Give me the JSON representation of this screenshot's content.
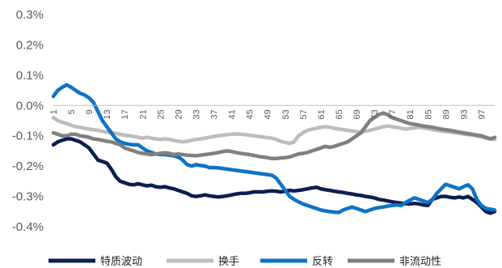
{
  "chart_data": {
    "type": "line",
    "x": [
      1,
      2,
      3,
      4,
      5,
      6,
      7,
      8,
      9,
      10,
      11,
      12,
      13,
      14,
      15,
      16,
      17,
      18,
      19,
      20,
      21,
      22,
      23,
      24,
      25,
      26,
      27,
      28,
      29,
      30,
      31,
      32,
      33,
      34,
      35,
      36,
      37,
      38,
      39,
      40,
      41,
      42,
      43,
      44,
      45,
      46,
      47,
      48,
      49,
      50,
      51,
      52,
      53,
      54,
      55,
      56,
      57,
      58,
      59,
      60,
      61,
      62,
      63,
      64,
      65,
      66,
      67,
      68,
      69,
      70,
      71,
      72,
      73,
      74,
      75,
      76,
      77,
      78,
      79,
      80,
      81,
      82,
      83,
      84,
      85,
      86,
      87,
      88,
      89,
      90,
      91,
      92,
      93,
      94,
      95,
      96,
      97,
      98,
      99,
      100
    ],
    "xtick_labels": [
      "1",
      "5",
      "9",
      "13",
      "17",
      "21",
      "25",
      "29",
      "33",
      "37",
      "41",
      "45",
      "49",
      "53",
      "57",
      "61",
      "65",
      "69",
      "73",
      "77",
      "81",
      "85",
      "89",
      "93",
      "97"
    ],
    "ytick_labels": [
      "0.3%",
      "0.2%",
      "0.1%",
      "0.0%",
      "-0.1%",
      "-0.2%",
      "-0.3%",
      "-0.4%"
    ],
    "ylim": [
      -0.4,
      0.3
    ],
    "legend_position": "bottom",
    "series": [
      {
        "name": "特质波动",
        "color": "#0b1f4f",
        "values": [
          -0.13,
          -0.12,
          -0.115,
          -0.11,
          -0.11,
          -0.115,
          -0.12,
          -0.13,
          -0.14,
          -0.16,
          -0.18,
          -0.185,
          -0.19,
          -0.21,
          -0.235,
          -0.25,
          -0.255,
          -0.26,
          -0.262,
          -0.258,
          -0.262,
          -0.265,
          -0.263,
          -0.268,
          -0.27,
          -0.268,
          -0.272,
          -0.275,
          -0.28,
          -0.285,
          -0.29,
          -0.298,
          -0.3,
          -0.298,
          -0.295,
          -0.298,
          -0.3,
          -0.302,
          -0.3,
          -0.298,
          -0.295,
          -0.292,
          -0.29,
          -0.29,
          -0.288,
          -0.285,
          -0.285,
          -0.285,
          -0.283,
          -0.282,
          -0.283,
          -0.285,
          -0.283,
          -0.28,
          -0.282,
          -0.28,
          -0.278,
          -0.275,
          -0.272,
          -0.27,
          -0.275,
          -0.278,
          -0.28,
          -0.283,
          -0.285,
          -0.287,
          -0.29,
          -0.292,
          -0.295,
          -0.297,
          -0.3,
          -0.302,
          -0.305,
          -0.31,
          -0.312,
          -0.315,
          -0.318,
          -0.32,
          -0.322,
          -0.324,
          -0.325,
          -0.323,
          -0.325,
          -0.328,
          -0.33,
          -0.31,
          -0.305,
          -0.3,
          -0.3,
          -0.303,
          -0.305,
          -0.302,
          -0.305,
          -0.3,
          -0.31,
          -0.32,
          -0.335,
          -0.35,
          -0.355,
          -0.35
        ]
      },
      {
        "name": "换手",
        "color": "#bdbdbd",
        "values": [
          -0.04,
          -0.05,
          -0.055,
          -0.06,
          -0.065,
          -0.07,
          -0.072,
          -0.075,
          -0.078,
          -0.08,
          -0.082,
          -0.085,
          -0.088,
          -0.09,
          -0.092,
          -0.095,
          -0.098,
          -0.1,
          -0.102,
          -0.105,
          -0.108,
          -0.105,
          -0.108,
          -0.11,
          -0.112,
          -0.11,
          -0.112,
          -0.115,
          -0.118,
          -0.12,
          -0.118,
          -0.115,
          -0.112,
          -0.11,
          -0.108,
          -0.105,
          -0.102,
          -0.1,
          -0.098,
          -0.096,
          -0.095,
          -0.094,
          -0.095,
          -0.096,
          -0.098,
          -0.1,
          -0.102,
          -0.104,
          -0.106,
          -0.108,
          -0.112,
          -0.118,
          -0.122,
          -0.125,
          -0.12,
          -0.1,
          -0.09,
          -0.082,
          -0.078,
          -0.075,
          -0.072,
          -0.07,
          -0.072,
          -0.075,
          -0.078,
          -0.08,
          -0.082,
          -0.084,
          -0.086,
          -0.088,
          -0.085,
          -0.082,
          -0.078,
          -0.074,
          -0.07,
          -0.068,
          -0.07,
          -0.072,
          -0.075,
          -0.078,
          -0.076,
          -0.074,
          -0.072,
          -0.074,
          -0.076,
          -0.08,
          -0.082,
          -0.084,
          -0.086,
          -0.088,
          -0.09,
          -0.092,
          -0.094,
          -0.096,
          -0.098,
          -0.1,
          -0.104,
          -0.108,
          -0.11,
          -0.112
        ]
      },
      {
        "name": "反转",
        "color": "#0f72c7",
        "values": [
          0.03,
          0.05,
          0.06,
          0.068,
          0.06,
          0.05,
          0.04,
          0.035,
          0.025,
          0.01,
          -0.02,
          -0.05,
          -0.07,
          -0.09,
          -0.11,
          -0.12,
          -0.125,
          -0.128,
          -0.13,
          -0.13,
          -0.14,
          -0.15,
          -0.155,
          -0.16,
          -0.162,
          -0.162,
          -0.164,
          -0.166,
          -0.17,
          -0.18,
          -0.195,
          -0.2,
          -0.195,
          -0.198,
          -0.2,
          -0.205,
          -0.205,
          -0.206,
          -0.208,
          -0.21,
          -0.212,
          -0.214,
          -0.216,
          -0.218,
          -0.22,
          -0.222,
          -0.224,
          -0.226,
          -0.228,
          -0.23,
          -0.24,
          -0.26,
          -0.28,
          -0.3,
          -0.31,
          -0.318,
          -0.325,
          -0.33,
          -0.335,
          -0.34,
          -0.345,
          -0.348,
          -0.35,
          -0.352,
          -0.353,
          -0.345,
          -0.34,
          -0.335,
          -0.34,
          -0.345,
          -0.35,
          -0.345,
          -0.34,
          -0.337,
          -0.335,
          -0.332,
          -0.33,
          -0.328,
          -0.33,
          -0.32,
          -0.312,
          -0.305,
          -0.31,
          -0.315,
          -0.32,
          -0.31,
          -0.29,
          -0.275,
          -0.26,
          -0.265,
          -0.27,
          -0.275,
          -0.268,
          -0.262,
          -0.275,
          -0.31,
          -0.33,
          -0.34,
          -0.342,
          -0.345
        ]
      },
      {
        "name": "非流动性",
        "color": "#808080",
        "values": [
          -0.09,
          -0.095,
          -0.1,
          -0.1,
          -0.095,
          -0.095,
          -0.1,
          -0.102,
          -0.105,
          -0.11,
          -0.112,
          -0.115,
          -0.118,
          -0.12,
          -0.125,
          -0.13,
          -0.14,
          -0.145,
          -0.15,
          -0.155,
          -0.158,
          -0.16,
          -0.162,
          -0.16,
          -0.158,
          -0.156,
          -0.158,
          -0.162,
          -0.16,
          -0.162,
          -0.164,
          -0.165,
          -0.166,
          -0.164,
          -0.162,
          -0.16,
          -0.158,
          -0.155,
          -0.152,
          -0.15,
          -0.152,
          -0.155,
          -0.158,
          -0.16,
          -0.162,
          -0.165,
          -0.168,
          -0.17,
          -0.172,
          -0.175,
          -0.175,
          -0.173,
          -0.172,
          -0.17,
          -0.165,
          -0.16,
          -0.158,
          -0.155,
          -0.15,
          -0.145,
          -0.14,
          -0.135,
          -0.138,
          -0.135,
          -0.13,
          -0.125,
          -0.12,
          -0.11,
          -0.1,
          -0.09,
          -0.07,
          -0.05,
          -0.04,
          -0.03,
          -0.025,
          -0.03,
          -0.04,
          -0.045,
          -0.05,
          -0.055,
          -0.06,
          -0.062,
          -0.065,
          -0.068,
          -0.07,
          -0.072,
          -0.075,
          -0.078,
          -0.08,
          -0.082,
          -0.085,
          -0.088,
          -0.09,
          -0.093,
          -0.095,
          -0.098,
          -0.1,
          -0.105,
          -0.11,
          -0.105
        ]
      }
    ]
  }
}
